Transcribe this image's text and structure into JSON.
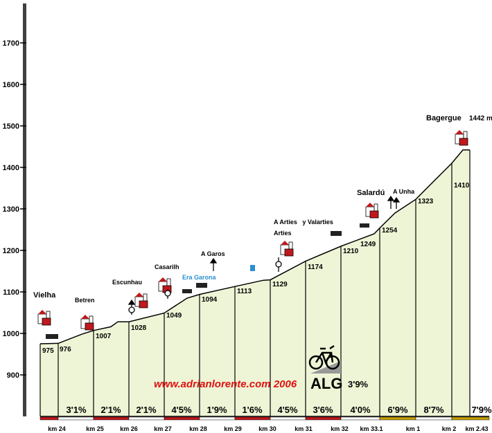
{
  "chart_data": {
    "type": "area",
    "ylim": [
      800,
      1800
    ],
    "y_ticks": [
      900,
      1000,
      1100,
      1200,
      1300,
      1400,
      1500,
      1600,
      1700
    ],
    "km_markers": [
      {
        "label": "km 24",
        "elev": 975
      },
      {
        "label": "km 25",
        "elev": 1007
      },
      {
        "label": "km 26",
        "elev": 1028
      },
      {
        "label": "km 27",
        "elev": 1049
      },
      {
        "label": "km 28",
        "elev": 1094
      },
      {
        "label": "km 29",
        "elev": 1113
      },
      {
        "label": "km 30",
        "elev": 1129
      },
      {
        "label": "km 31",
        "elev": 1174
      },
      {
        "label": "km 32",
        "elev": 1210
      },
      {
        "label": "km 33.1",
        "elev": 1254
      },
      {
        "label": "km 1",
        "elev": 1323
      },
      {
        "label": "km 2",
        "elev": 1410
      },
      {
        "label": "km 2.43",
        "elev": 1442
      }
    ],
    "extra_elevations": [
      {
        "label": "976",
        "elev": 976
      },
      {
        "label": "1249",
        "elev": 1249
      }
    ],
    "gradients": [
      "3'1%",
      "2'1%",
      "2'1%",
      "4'5%",
      "1'9%",
      "1'6%",
      "4'5%",
      "3'6%",
      "4'0%",
      "6'9%",
      "8'7%",
      "7'9%"
    ],
    "segment_colors": [
      "#c0181c",
      "#c0181c",
      "#c0181c",
      "#c0181c",
      "#c0181c",
      "#c0181c",
      "#c0181c",
      "#c0181c",
      "#c0181c",
      "#c8a000",
      "#c8a000",
      "#c8a000"
    ],
    "average_gradient": "3'9%",
    "summit_label": "1442 m"
  },
  "places": {
    "vielha": "Vielha",
    "betren": "Betren",
    "escunhau": "Escunhau",
    "casarilh": "Casarilh",
    "era_garona": "Era Garona",
    "a_garos": "A Garos",
    "arties": "Arties",
    "a_arties_valarties": "A Arties   y Valarties",
    "salardu": "Salardú",
    "a_unha": "A Unha",
    "bagergue": "Bagergue"
  },
  "credit": "www.adrianlorente.com 2006",
  "badge": "ALG",
  "colors": {
    "fill": "#eef5d6",
    "axis_bar": "#404040",
    "credit": "#e01010",
    "river": "#2a8fd0",
    "building": "#c0181c"
  }
}
